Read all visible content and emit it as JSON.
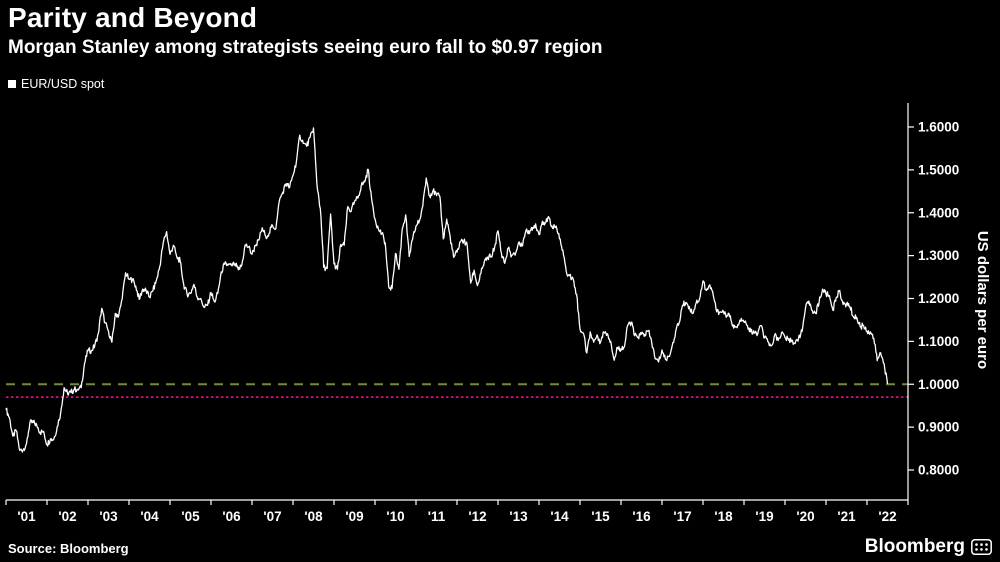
{
  "header": {
    "title": "Parity and Beyond",
    "subtitle": "Morgan Stanley among strategists seeing euro fall to $0.97 region"
  },
  "legend": {
    "series_label": "EUR/USD spot"
  },
  "footer": {
    "source": "Source: Bloomberg",
    "brand": "Bloomberg"
  },
  "colors": {
    "background": "#000000",
    "text": "#ffffff",
    "series_line": "#ffffff",
    "parity_line": "#7a8a2c",
    "target_line": "#ff0f9f"
  },
  "chart_data": {
    "type": "line",
    "title": "Parity and Beyond",
    "subtitle": "Morgan Stanley among strategists seeing euro fall to $0.97 region",
    "series_name": "EUR/USD spot",
    "xlabel": "",
    "ylabel": "US dollars per euro",
    "ylim": [
      0.78,
      1.65
    ],
    "x_range": [
      2001.0,
      2022.6
    ],
    "grid": false,
    "legend_position": "top-left",
    "yticks": [
      0.8,
      0.9,
      1.0,
      1.1,
      1.2,
      1.3,
      1.4,
      1.5,
      1.6
    ],
    "ytick_labels": [
      "0.8000",
      "0.9000",
      "1.0000",
      "1.1000",
      "1.2000",
      "1.3000",
      "1.4000",
      "1.5000",
      "1.6000"
    ],
    "x_tick_labels": [
      "'01",
      "'02",
      "'03",
      "'04",
      "'05",
      "'06",
      "'07",
      "'08",
      "'09",
      "'10",
      "'11",
      "'12",
      "'13",
      "'14",
      "'15",
      "'16",
      "'17",
      "'18",
      "'19",
      "'20",
      "'21",
      "'22"
    ],
    "reference_lines": [
      {
        "label": "parity 1.0000",
        "value": 1.0,
        "style": "dashed",
        "color": "#7a8a2c",
        "width": 2
      },
      {
        "label": "0.97 region",
        "value": 0.97,
        "style": "dotted",
        "color": "#ff0f9f",
        "width": 1.5
      }
    ],
    "x_start": 2001.0,
    "x_step": 0.0833333,
    "x_unit": "monthly (decimal years)",
    "values": [
      0.942,
      0.922,
      0.879,
      0.892,
      0.846,
      0.847,
      0.861,
      0.91,
      0.911,
      0.905,
      0.888,
      0.89,
      0.859,
      0.872,
      0.872,
      0.901,
      0.934,
      0.992,
      0.979,
      0.981,
      0.988,
      0.988,
      0.992,
      1.049,
      1.078,
      1.079,
      1.09,
      1.118,
      1.177,
      1.143,
      1.124,
      1.098,
      1.165,
      1.16,
      1.199,
      1.26,
      1.245,
      1.244,
      1.229,
      1.198,
      1.222,
      1.218,
      1.203,
      1.218,
      1.242,
      1.274,
      1.33,
      1.356,
      1.303,
      1.324,
      1.297,
      1.287,
      1.233,
      1.21,
      1.212,
      1.233,
      1.203,
      1.2,
      1.179,
      1.184,
      1.214,
      1.192,
      1.212,
      1.262,
      1.28,
      1.278,
      1.277,
      1.281,
      1.267,
      1.277,
      1.325,
      1.32,
      1.303,
      1.323,
      1.336,
      1.365,
      1.345,
      1.352,
      1.371,
      1.363,
      1.427,
      1.448,
      1.468,
      1.459,
      1.487,
      1.519,
      1.581,
      1.562,
      1.555,
      1.576,
      1.598,
      1.467,
      1.41,
      1.273,
      1.27,
      1.397,
      1.281,
      1.268,
      1.326,
      1.324,
      1.414,
      1.403,
      1.426,
      1.434,
      1.464,
      1.472,
      1.501,
      1.433,
      1.386,
      1.362,
      1.351,
      1.33,
      1.227,
      1.224,
      1.305,
      1.268,
      1.363,
      1.395,
      1.298,
      1.338,
      1.369,
      1.381,
      1.416,
      1.481,
      1.439,
      1.452,
      1.44,
      1.438,
      1.339,
      1.385,
      1.344,
      1.296,
      1.308,
      1.333,
      1.334,
      1.324,
      1.236,
      1.266,
      1.23,
      1.258,
      1.286,
      1.296,
      1.298,
      1.319,
      1.358,
      1.306,
      1.282,
      1.317,
      1.3,
      1.301,
      1.33,
      1.322,
      1.353,
      1.358,
      1.359,
      1.374,
      1.349,
      1.38,
      1.377,
      1.387,
      1.363,
      1.369,
      1.339,
      1.313,
      1.263,
      1.253,
      1.245,
      1.21,
      1.129,
      1.119,
      1.073,
      1.122,
      1.098,
      1.115,
      1.098,
      1.121,
      1.118,
      1.1,
      1.056,
      1.086,
      1.083,
      1.087,
      1.138,
      1.145,
      1.113,
      1.11,
      1.117,
      1.116,
      1.124,
      1.098,
      1.059,
      1.052,
      1.08,
      1.058,
      1.065,
      1.09,
      1.124,
      1.143,
      1.184,
      1.191,
      1.181,
      1.165,
      1.19,
      1.2,
      1.241,
      1.219,
      1.232,
      1.208,
      1.169,
      1.168,
      1.169,
      1.16,
      1.16,
      1.131,
      1.132,
      1.147,
      1.145,
      1.137,
      1.122,
      1.121,
      1.117,
      1.137,
      1.108,
      1.099,
      1.09,
      1.115,
      1.102,
      1.121,
      1.109,
      1.103,
      1.103,
      1.095,
      1.11,
      1.123,
      1.178,
      1.194,
      1.172,
      1.165,
      1.193,
      1.222,
      1.21,
      1.207,
      1.173,
      1.202,
      1.219,
      1.186,
      1.187,
      1.181,
      1.158,
      1.156,
      1.134,
      1.137,
      1.123,
      1.122,
      1.107,
      1.055,
      1.073,
      1.048,
      1.002
    ]
  }
}
